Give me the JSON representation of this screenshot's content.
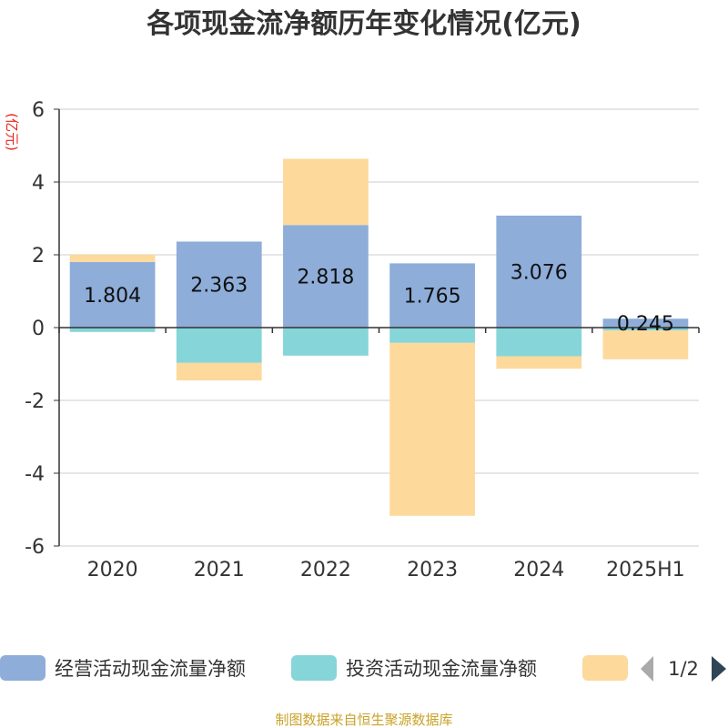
{
  "title": "各项现金流净额历年变化情况(亿元)",
  "unit": "(亿元)",
  "source": "制图数据来自恒生聚源数据库",
  "legend": {
    "page_indicator": "1/2"
  },
  "colors": {
    "operating": "#8eadd9",
    "investing": "#86d5d8",
    "third": "#fdd99c",
    "grid": "#cccccc",
    "axis": "#333333",
    "unit": "#e8241c",
    "source": "#c9a227",
    "arrow_disabled": "#aaaaaa",
    "arrow_active": "#2f4554"
  },
  "chart_data": {
    "type": "bar",
    "stacked": true,
    "categories": [
      "2020",
      "2021",
      "2022",
      "2023",
      "2024",
      "2025H1"
    ],
    "ylim": [
      -6,
      6
    ],
    "yticks": [
      -6,
      -4,
      -2,
      0,
      2,
      4,
      6
    ],
    "ytick_labels": [
      "-6",
      "-4",
      "-2",
      "0",
      "2",
      "4",
      "6"
    ],
    "grid": true,
    "legend_position": "bottom",
    "series": [
      {
        "name": "经营活动现金流量净额",
        "color": "#8eadd9",
        "values": [
          1.804,
          2.363,
          2.818,
          1.765,
          3.076,
          0.245
        ],
        "labels": [
          "1.804",
          "2.363",
          "2.818",
          "1.765",
          "3.076",
          "0.245"
        ]
      },
      {
        "name": "投资活动现金流量净额",
        "color": "#86d5d8",
        "values": [
          -0.12,
          -0.97,
          -0.77,
          -0.42,
          -0.79,
          -0.08
        ]
      },
      {
        "name": "",
        "color": "#fdd99c",
        "values": [
          0.2,
          -0.48,
          1.82,
          -4.75,
          -0.34,
          -0.79
        ]
      }
    ]
  }
}
